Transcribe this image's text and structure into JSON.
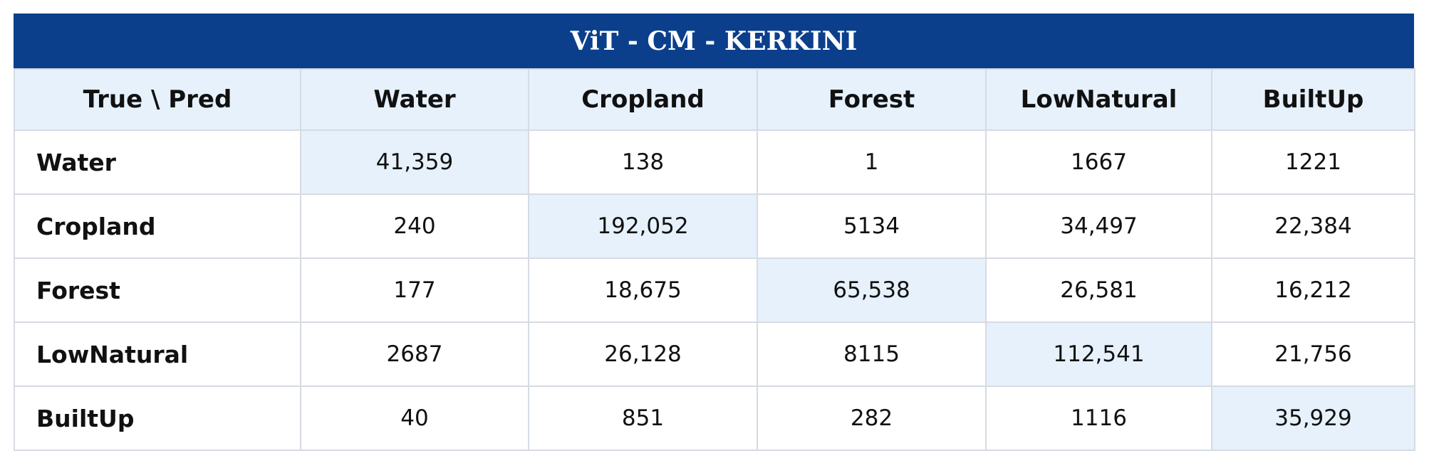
{
  "table": {
    "title": "ViT - CM - KERKINI",
    "header": [
      "True \\ Pred",
      "Water",
      "Cropland",
      "Forest",
      "LowNatural",
      "BuiltUp"
    ],
    "rows": [
      [
        "Water",
        "41,359",
        "138",
        "1",
        "1667",
        "1221"
      ],
      [
        "Cropland",
        "240",
        "192,052",
        "5134",
        "34,497",
        "22,384"
      ],
      [
        "Forest",
        "177",
        "18,675",
        "65,538",
        "26,581",
        "16,212"
      ],
      [
        "LowNatural",
        "2687",
        "26,128",
        "8115",
        "112,541",
        "21,756"
      ],
      [
        "BuiltUp",
        "40",
        "851",
        "282",
        "1116",
        "35,929"
      ]
    ]
  }
}
